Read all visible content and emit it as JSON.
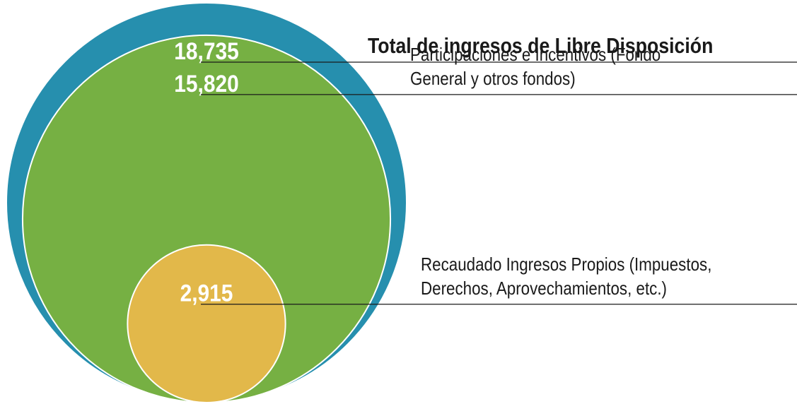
{
  "chart_data": {
    "type": "circles",
    "categories": [
      "Total de ingresos de Libre Disposición",
      "Participaciones e Incentivos (Fondo General y otros fondos)",
      "Recaudado Ingresos Propios (Impuestos, Derechos, Aprovechamientos, etc.)"
    ],
    "values": [
      18735,
      15820,
      2915
    ],
    "value_labels": [
      "18,735",
      "15,820",
      "2,915"
    ],
    "colors": [
      "#268fae",
      "#76b043",
      "#e2b84a"
    ]
  }
}
